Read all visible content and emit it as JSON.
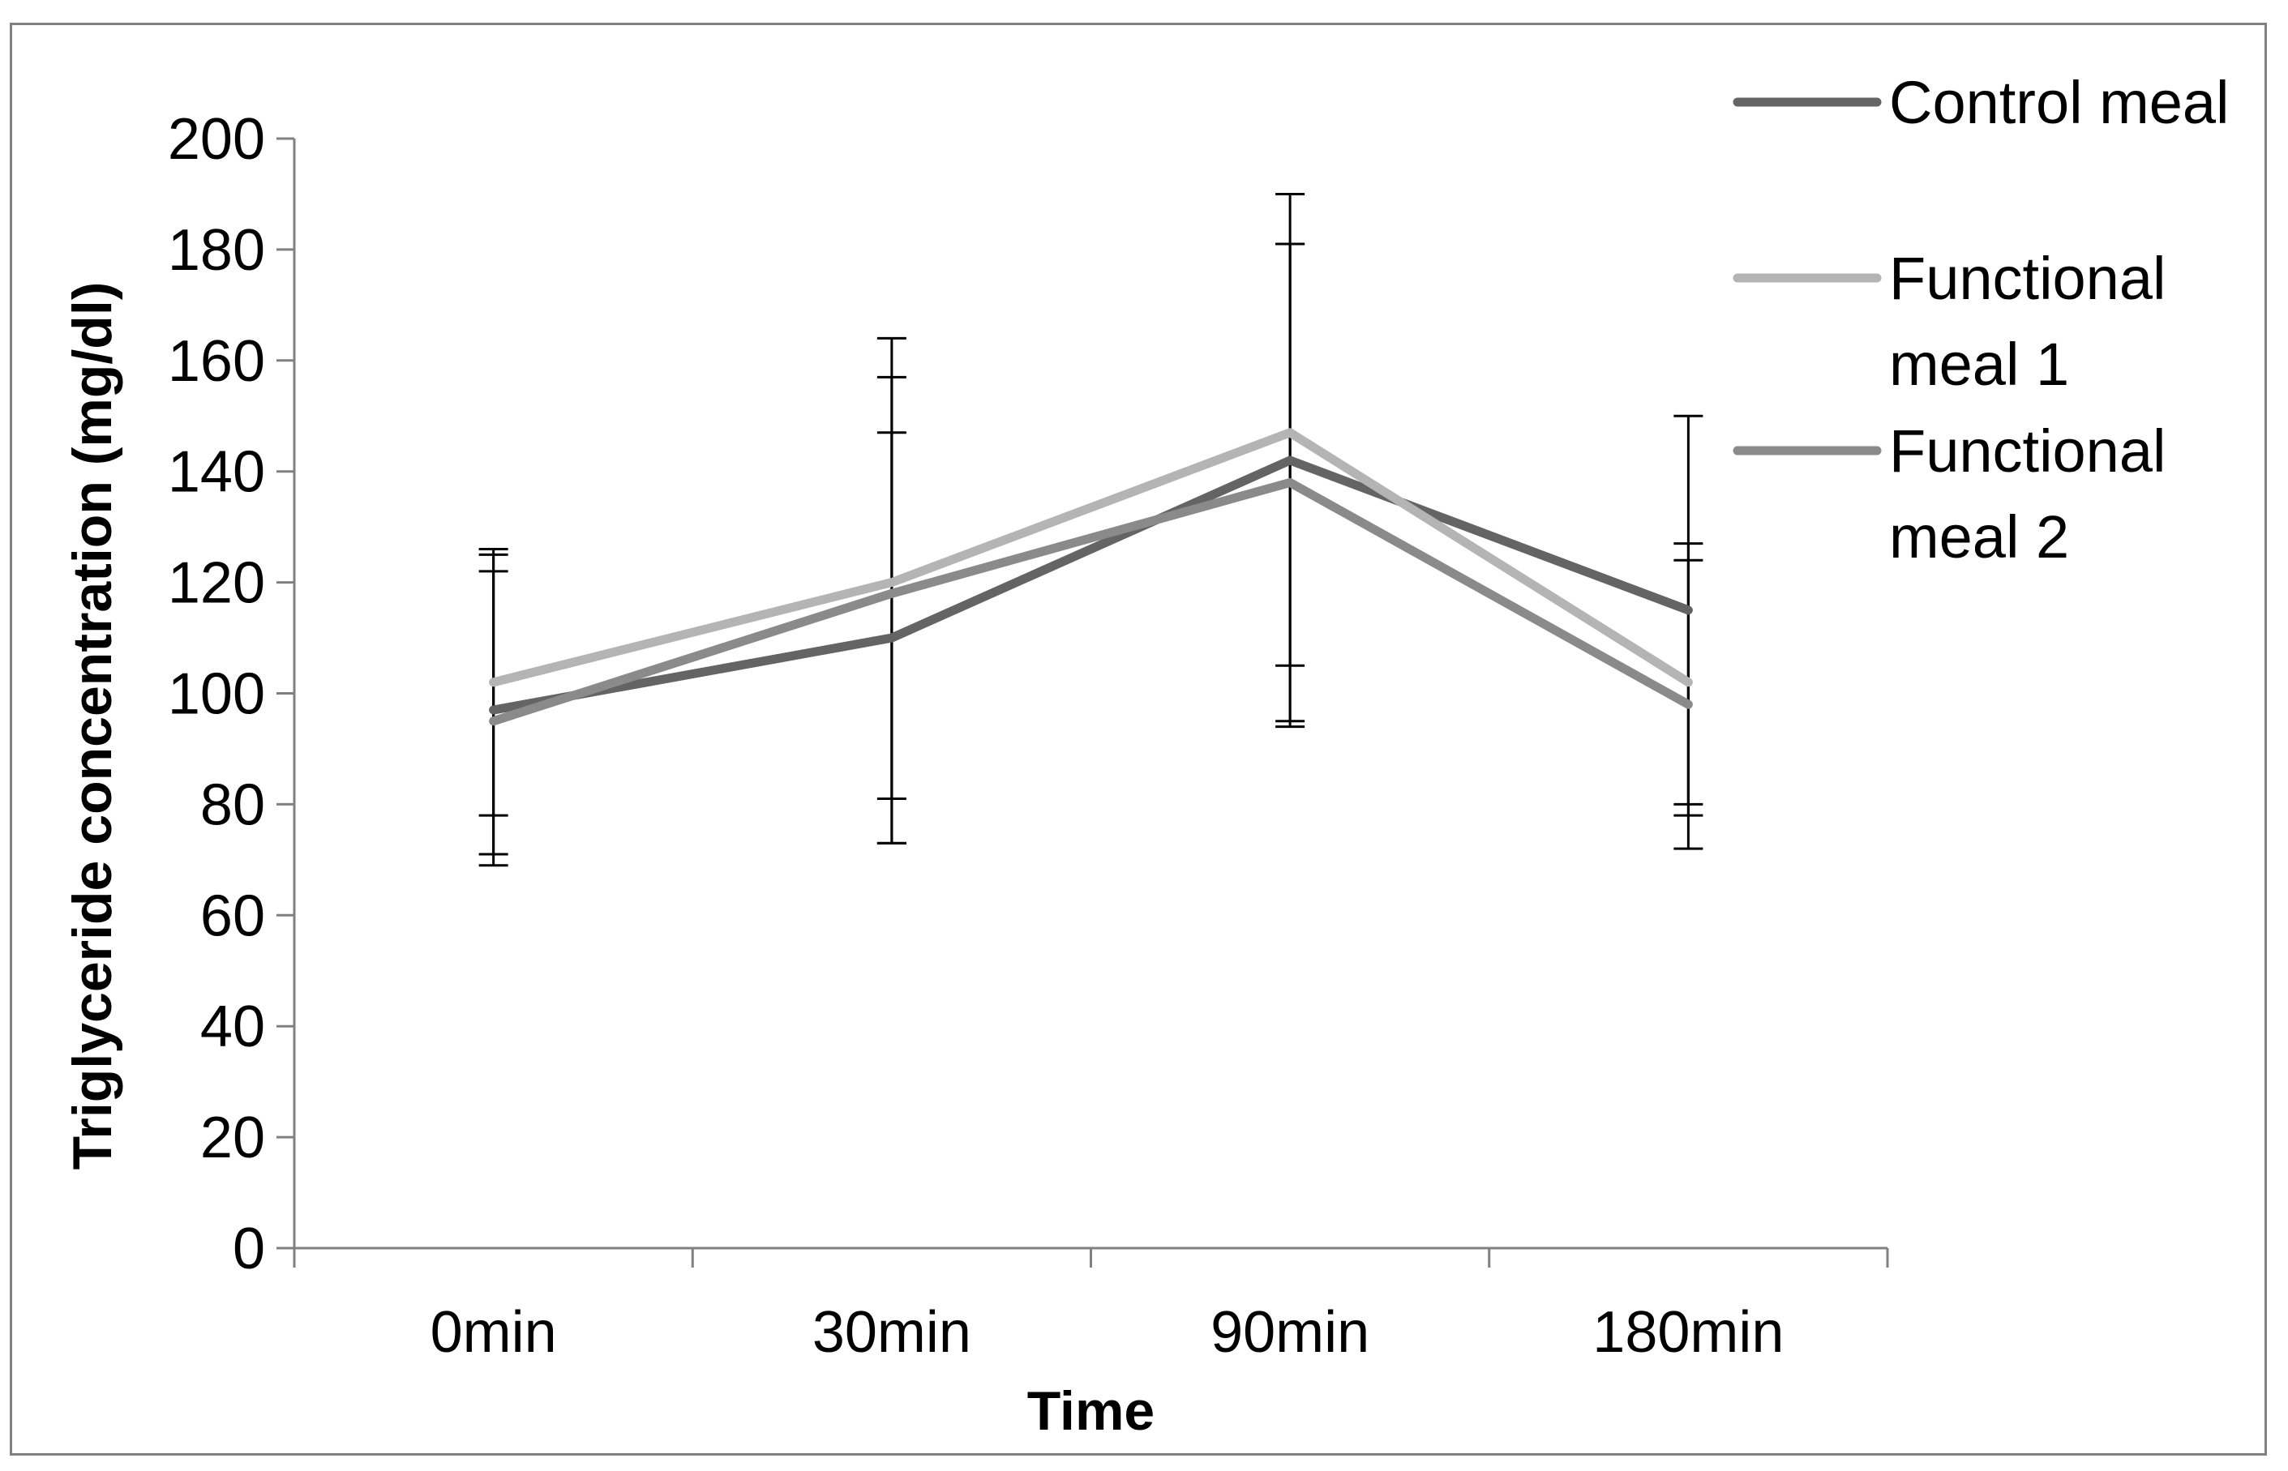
{
  "chart_data": {
    "type": "line",
    "title": "",
    "xlabel": "Time",
    "ylabel": "Triglyceride concentration (mg/dl)",
    "categories": [
      "0min",
      "30min",
      "90min",
      "180min"
    ],
    "ylim": [
      0,
      200
    ],
    "yticks": [
      0,
      20,
      40,
      60,
      80,
      100,
      120,
      140,
      160,
      180,
      200
    ],
    "grid": false,
    "legend_position": "top-right",
    "series": [
      {
        "name": "Control meal",
        "legend_lines": [
          "Control meal"
        ],
        "color": "#646464",
        "values": [
          97,
          110,
          142,
          115
        ],
        "error_low": [
          69,
          73,
          94,
          80
        ],
        "error_high": [
          125,
          147,
          190,
          150
        ]
      },
      {
        "name": "Functional meal 1",
        "legend_lines": [
          "Functional",
          "meal 1"
        ],
        "color": "#b4b4b4",
        "values": [
          102,
          120,
          147,
          102
        ],
        "error_low": [
          78,
          81,
          105,
          78
        ],
        "error_high": [
          126,
          164,
          181,
          127
        ]
      },
      {
        "name": "Functional meal 2",
        "legend_lines": [
          "Functional",
          "meal 2"
        ],
        "color": "#8a8a8a",
        "values": [
          95,
          118,
          138,
          98
        ],
        "error_low": [
          71,
          73,
          95,
          72
        ],
        "error_high": [
          122,
          157,
          181,
          124
        ]
      }
    ]
  }
}
